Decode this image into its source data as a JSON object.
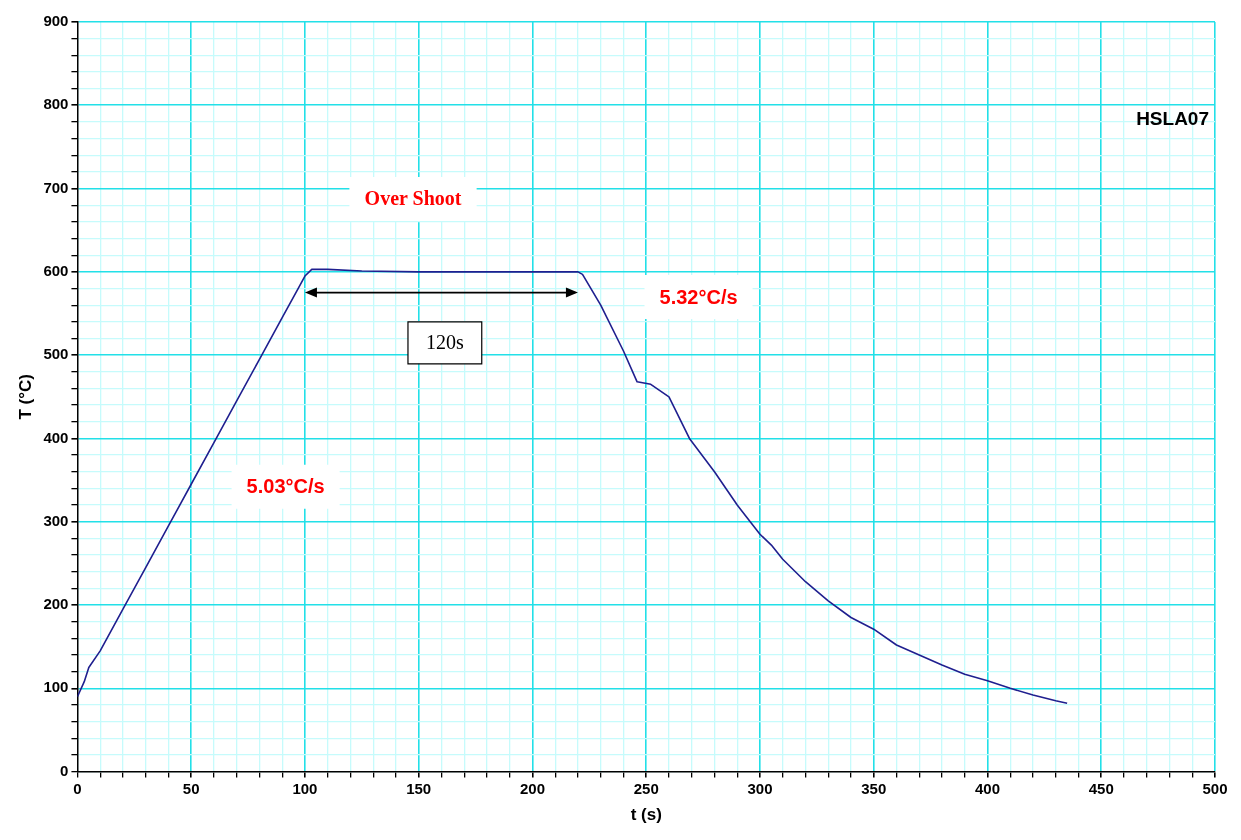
{
  "chart_data": {
    "type": "line",
    "xlabel": "t (s)",
    "ylabel": "T (°C)",
    "x": [
      0,
      3,
      5,
      10,
      20,
      30,
      40,
      50,
      60,
      70,
      80,
      90,
      97,
      100,
      103,
      110,
      125,
      150,
      200,
      220,
      222,
      230,
      240,
      246,
      252,
      260,
      269,
      280,
      290,
      300,
      305,
      310,
      320,
      330,
      340,
      350,
      360,
      370,
      380,
      390,
      400,
      410,
      420,
      430,
      435
    ],
    "series": [
      {
        "color": "#1f1f8f",
        "values": [
          90,
          108,
          125,
          145,
          195,
          245,
          295,
          345,
          395,
          445,
          495,
          545,
          580,
          595,
          603,
          603,
          601,
          600,
          600,
          600,
          597,
          560,
          505,
          468,
          465,
          450,
          400,
          360,
          320,
          285,
          272,
          255,
          228,
          205,
          185,
          171,
          152,
          140,
          128,
          117,
          109,
          100,
          92,
          85,
          82
        ]
      }
    ],
    "xlim": [
      0,
      500
    ],
    "xticks": [
      0,
      {
        "value": 10,
        "label": null
      },
      {
        "value": 20,
        "label": null
      },
      {
        "value": 30,
        "label": null
      },
      {
        "value": 40,
        "label": null
      },
      50,
      {
        "value": 60,
        "label": null
      },
      {
        "value": 70,
        "label": null
      },
      {
        "value": 80,
        "label": null
      },
      {
        "value": 90,
        "label": null
      },
      100,
      {
        "value": 110,
        "label": null
      },
      {
        "value": 120,
        "label": null
      },
      {
        "value": 130,
        "label": null
      },
      {
        "value": 140,
        "label": null
      },
      150,
      {
        "value": 160,
        "label": null
      },
      {
        "value": 170,
        "label": null
      },
      {
        "value": 180,
        "label": null
      },
      {
        "value": 190,
        "label": null
      },
      200,
      {
        "value": 210,
        "label": null
      },
      {
        "value": 220,
        "label": null
      },
      {
        "value": 230,
        "label": null
      },
      {
        "value": 240,
        "label": null
      },
      250,
      {
        "value": 260,
        "label": null
      },
      {
        "value": 270,
        "label": null
      },
      {
        "value": 280,
        "label": null
      },
      {
        "value": 290,
        "label": null
      },
      300,
      {
        "value": 310,
        "label": null
      },
      {
        "value": 320,
        "label": null
      },
      {
        "value": 330,
        "label": null
      },
      {
        "value": 340,
        "label": null
      },
      350,
      {
        "value": 360,
        "label": null
      },
      {
        "value": 370,
        "label": null
      },
      {
        "value": 380,
        "label": null
      },
      {
        "value": 390,
        "label": null
      },
      400,
      {
        "value": 410,
        "label": null
      },
      {
        "value": 420,
        "label": null
      },
      {
        "value": 430,
        "label": null
      },
      {
        "value": 440,
        "label": null
      },
      450,
      {
        "value": 460,
        "label": null
      },
      {
        "value": 470,
        "label": null
      },
      {
        "value": 480,
        "label": null
      },
      {
        "value": 490,
        "label": null
      },
      500
    ],
    "ylim": [
      0,
      900
    ],
    "yticks": [
      0,
      {
        "value": 20,
        "label": null
      },
      {
        "value": 40,
        "label": null
      },
      {
        "value": 60,
        "label": null
      },
      {
        "value": 80,
        "label": null
      },
      100,
      {
        "value": 120,
        "label": null
      },
      {
        "value": 140,
        "label": null
      },
      {
        "value": 160,
        "label": null
      },
      {
        "value": 180,
        "label": null
      },
      200,
      {
        "value": 220,
        "label": null
      },
      {
        "value": 240,
        "label": null
      },
      {
        "value": 260,
        "label": null
      },
      {
        "value": 280,
        "label": null
      },
      300,
      {
        "value": 320,
        "label": null
      },
      {
        "value": 340,
        "label": null
      },
      {
        "value": 360,
        "label": null
      },
      {
        "value": 380,
        "label": null
      },
      400,
      {
        "value": 420,
        "label": null
      },
      {
        "value": 440,
        "label": null
      },
      {
        "value": 460,
        "label": null
      },
      {
        "value": 480,
        "label": null
      },
      500,
      {
        "value": 520,
        "label": null
      },
      {
        "value": 540,
        "label": null
      },
      {
        "value": 560,
        "label": null
      },
      {
        "value": 580,
        "label": null
      },
      600,
      {
        "value": 620,
        "label": null
      },
      {
        "value": 640,
        "label": null
      },
      {
        "value": 660,
        "label": null
      },
      {
        "value": 680,
        "label": null
      },
      700,
      {
        "value": 720,
        "label": null
      },
      {
        "value": 740,
        "label": null
      },
      {
        "value": 760,
        "label": null
      },
      {
        "value": 780,
        "label": null
      },
      800,
      {
        "value": 820,
        "label": null
      },
      {
        "value": 840,
        "label": null
      },
      {
        "value": 860,
        "label": null
      },
      {
        "value": 880,
        "label": null
      },
      900
    ],
    "grid": true,
    "marker": "none",
    "line_style": "solid",
    "annotations": [
      "Over Shoot",
      "120s",
      "5.32°C/s",
      "5.03°C/s",
      "HSLA07"
    ]
  }
}
